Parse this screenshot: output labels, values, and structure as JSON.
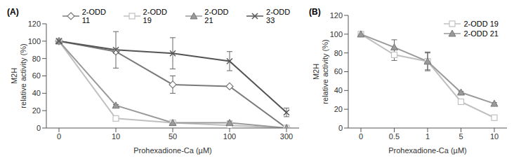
{
  "chart_data": [
    {
      "type": "line",
      "title": "(A)",
      "x_label": "Prohexadione-Ca (µM)",
      "y_label": "M2H\nrelative activity (%)",
      "categories": [
        "0",
        "10",
        "50",
        "100",
        "300"
      ],
      "ylim": [
        0,
        120
      ],
      "yticks": [
        0,
        20,
        40,
        60,
        80,
        100,
        120
      ],
      "legend": "top",
      "series": [
        {
          "name": "2-ODD 11",
          "color": "#7a7a7a",
          "marker": "diamond",
          "values": [
            100,
            88,
            50,
            48,
            0
          ],
          "errors": [
            0,
            2,
            10,
            1,
            0
          ]
        },
        {
          "name": "2-ODD 19",
          "color": "#c0c0c0",
          "marker": "square",
          "values": [
            100,
            11,
            6,
            3,
            0
          ],
          "errors": [
            0,
            1,
            1,
            1,
            0
          ]
        },
        {
          "name": "2-ODD 21",
          "color": "#9a9a9a",
          "marker": "triangle",
          "values": [
            100,
            26,
            6,
            6,
            0
          ],
          "errors": [
            0,
            1,
            1,
            2,
            0
          ]
        },
        {
          "name": "2-ODD 33",
          "color": "#555555",
          "marker": "cross",
          "values": [
            100,
            90,
            86,
            77,
            18
          ],
          "errors": [
            0,
            21,
            18,
            11,
            5
          ]
        }
      ]
    },
    {
      "type": "line",
      "title": "(B)",
      "x_label": "Prohexadione-Ca (µM)",
      "y_label": "M2H\nrelative activity (%)",
      "categories": [
        "0",
        "0.5",
        "1",
        "5",
        "10"
      ],
      "ylim": [
        0,
        120
      ],
      "yticks": [
        0,
        20,
        40,
        60,
        80,
        100,
        120
      ],
      "legend": "top right",
      "series": [
        {
          "name": "2-ODD 19",
          "color": "#c0c0c0",
          "marker": "square",
          "values": [
            100,
            78,
            71,
            28,
            11
          ],
          "errors": [
            0,
            6,
            9,
            1,
            1
          ]
        },
        {
          "name": "2-ODD 21",
          "color": "#9a9a9a",
          "marker": "triangle",
          "values": [
            100,
            86,
            71,
            38,
            26
          ],
          "errors": [
            0,
            8,
            10,
            1,
            1
          ]
        }
      ]
    }
  ]
}
